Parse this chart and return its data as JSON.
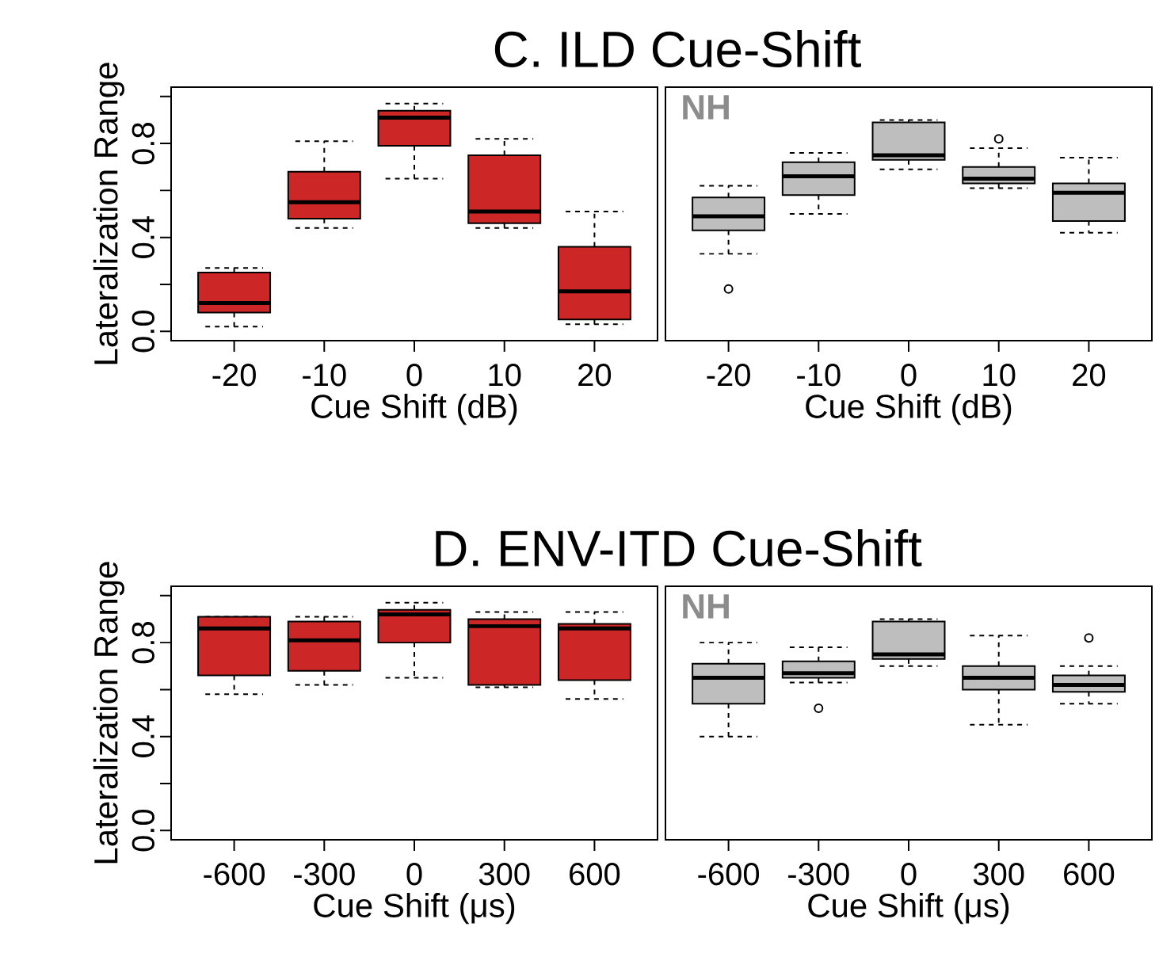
{
  "chart_data": [
    {
      "type": "box",
      "title": "C. ILD Cue-Shift",
      "xlabel": "Cue Shift (dB)",
      "ylabel": "Lateralization Range",
      "categories": [
        "-20",
        "-10",
        "0",
        "10",
        "20"
      ],
      "ylim": [
        -0.04,
        1.04
      ],
      "yticks": [
        {
          "value": 0,
          "label": "0.0"
        },
        {
          "value": 0.2,
          "label": null
        },
        {
          "value": 0.4,
          "label": "0.4"
        },
        {
          "value": 0.6,
          "label": null
        },
        {
          "value": 0.8,
          "label": "0.8"
        },
        {
          "value": 1.0,
          "label": null
        }
      ],
      "series": [
        {
          "color": "#cd2626",
          "boxes": [
            {
              "low": 0.02,
              "q1": 0.08,
              "median": 0.12,
              "q3": 0.25,
              "high": 0.27
            },
            {
              "low": 0.44,
              "q1": 0.48,
              "median": 0.55,
              "q3": 0.68,
              "high": 0.81
            },
            {
              "low": 0.65,
              "q1": 0.79,
              "median": 0.91,
              "q3": 0.94,
              "high": 0.97
            },
            {
              "low": 0.44,
              "q1": 0.46,
              "median": 0.51,
              "q3": 0.75,
              "high": 0.82
            },
            {
              "low": 0.03,
              "q1": 0.05,
              "median": 0.17,
              "q3": 0.36,
              "high": 0.51
            }
          ]
        }
      ]
    },
    {
      "type": "box",
      "xlabel": "Cue Shift (dB)",
      "annotations": [
        "NH"
      ],
      "categories": [
        "-20",
        "-10",
        "0",
        "10",
        "20"
      ],
      "ylim": [
        -0.04,
        1.04
      ],
      "tick_labels": "x",
      "series": [
        {
          "color": "#bebebe",
          "boxes": [
            {
              "low": 0.33,
              "q1": 0.43,
              "median": 0.49,
              "q3": 0.57,
              "high": 0.62,
              "outliers": [
                0.18
              ]
            },
            {
              "low": 0.5,
              "q1": 0.58,
              "median": 0.66,
              "q3": 0.72,
              "high": 0.76
            },
            {
              "low": 0.69,
              "q1": 0.73,
              "median": 0.75,
              "q3": 0.89,
              "high": 0.9
            },
            {
              "low": 0.61,
              "q1": 0.63,
              "median": 0.65,
              "q3": 0.7,
              "high": 0.78,
              "outliers": [
                0.82
              ]
            },
            {
              "low": 0.42,
              "q1": 0.47,
              "median": 0.59,
              "q3": 0.63,
              "high": 0.74
            }
          ]
        }
      ]
    },
    {
      "type": "box",
      "title": "D. ENV-ITD Cue-Shift",
      "xlabel": "Cue Shift (μs)",
      "ylabel": "Lateralization Range",
      "categories": [
        "-600",
        "-300",
        "0",
        "300",
        "600"
      ],
      "ylim": [
        -0.04,
        1.04
      ],
      "yticks": [
        {
          "value": 0,
          "label": "0.0"
        },
        {
          "value": 0.2,
          "label": null
        },
        {
          "value": 0.4,
          "label": "0.4"
        },
        {
          "value": 0.6,
          "label": null
        },
        {
          "value": 0.8,
          "label": "0.8"
        },
        {
          "value": 1.0,
          "label": null
        }
      ],
      "series": [
        {
          "color": "#cd2626",
          "boxes": [
            {
              "low": 0.58,
              "q1": 0.66,
              "median": 0.86,
              "q3": 0.91,
              "high": 0.91
            },
            {
              "low": 0.62,
              "q1": 0.68,
              "median": 0.81,
              "q3": 0.89,
              "high": 0.91
            },
            {
              "low": 0.65,
              "q1": 0.8,
              "median": 0.92,
              "q3": 0.94,
              "high": 0.97
            },
            {
              "low": 0.61,
              "q1": 0.62,
              "median": 0.87,
              "q3": 0.9,
              "high": 0.93
            },
            {
              "low": 0.56,
              "q1": 0.64,
              "median": 0.86,
              "q3": 0.88,
              "high": 0.93
            }
          ]
        }
      ]
    },
    {
      "type": "box",
      "xlabel": "Cue Shift (μs)",
      "annotations": [
        "NH"
      ],
      "categories": [
        "-600",
        "-300",
        "0",
        "300",
        "600"
      ],
      "ylim": [
        -0.04,
        1.04
      ],
      "tick_labels": "x",
      "series": [
        {
          "color": "#bebebe",
          "boxes": [
            {
              "low": 0.4,
              "q1": 0.54,
              "median": 0.65,
              "q3": 0.71,
              "high": 0.8
            },
            {
              "low": 0.63,
              "q1": 0.65,
              "median": 0.67,
              "q3": 0.72,
              "high": 0.78,
              "outliers": [
                0.52
              ]
            },
            {
              "low": 0.7,
              "q1": 0.73,
              "median": 0.75,
              "q3": 0.89,
              "high": 0.9
            },
            {
              "low": 0.45,
              "q1": 0.6,
              "median": 0.65,
              "q3": 0.7,
              "high": 0.83
            },
            {
              "low": 0.54,
              "q1": 0.59,
              "median": 0.62,
              "q3": 0.66,
              "high": 0.7,
              "outliers": [
                0.82
              ]
            }
          ]
        }
      ]
    }
  ]
}
